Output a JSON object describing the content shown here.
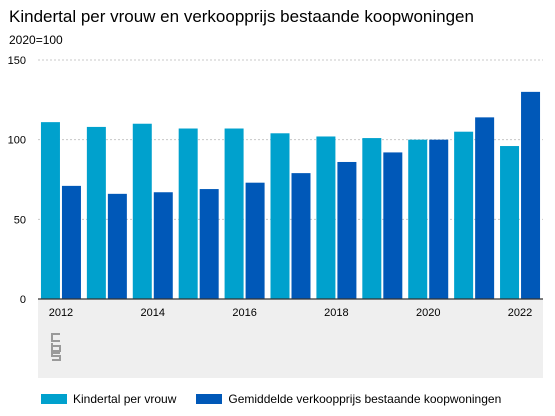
{
  "title": "Kindertal per vrouw en verkoopprijs bestaande koopwoningen",
  "subtitle": "2020=100",
  "logo_text": "cbs",
  "colors": {
    "series1": "#00a1cd",
    "series2": "#0058b8",
    "panel": "#efefef",
    "grid": "#c8c8c8",
    "axis": "#333333"
  },
  "chart_data": {
    "type": "bar",
    "title": "Kindertal per vrouw en verkoopprijs bestaande koopwoningen",
    "ylabel": "2020=100",
    "xlabel": "",
    "categories": [
      "2012",
      "2013",
      "2014",
      "2015",
      "2016",
      "2017",
      "2018",
      "2019",
      "2020",
      "2021",
      "2022"
    ],
    "x_tick_labels": [
      "2012",
      "2014",
      "2016",
      "2018",
      "2020",
      "2022"
    ],
    "y_ticks": [
      0,
      50,
      100,
      150
    ],
    "ylim": [
      0,
      150
    ],
    "grid": true,
    "legend_position": "bottom",
    "series": [
      {
        "name": "Kindertal per vrouw",
        "color": "#00a1cd",
        "values": [
          111,
          108,
          110,
          107,
          107,
          104,
          102,
          101,
          100,
          105,
          96
        ]
      },
      {
        "name": "Gemiddelde verkoopprijs bestaande koopwoningen",
        "color": "#0058b8",
        "values": [
          71,
          66,
          67,
          69,
          73,
          79,
          86,
          92,
          100,
          114,
          130
        ]
      }
    ]
  },
  "legend": [
    {
      "label": "Kindertal per vrouw"
    },
    {
      "label": "Gemiddelde verkoopprijs bestaande koopwoningen"
    }
  ]
}
